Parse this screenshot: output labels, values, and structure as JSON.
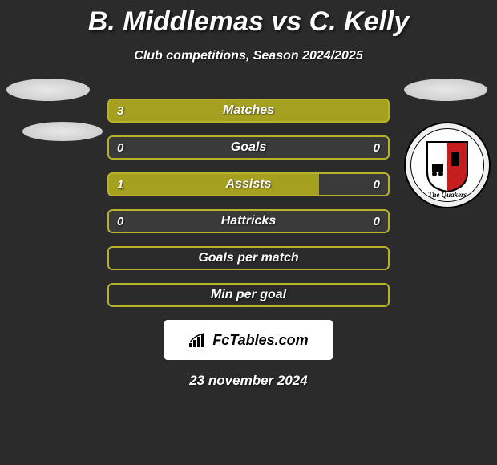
{
  "title": "B. Middlemas vs C. Kelly",
  "subtitle": "Club competitions, Season 2024/2025",
  "date": "23 november 2024",
  "footer": {
    "text": "FcTables.com"
  },
  "club_right": {
    "banner": "The Quakers"
  },
  "colors": {
    "bar_fill": "#a6a020",
    "bar_fill_alt": "#b6b030",
    "bar_border": "#b8b228",
    "bar_bg_empty": "#3a3a3a",
    "background": "#2b2b2b"
  },
  "bars": [
    {
      "label": "Matches",
      "left_value": "3",
      "right_value": "",
      "left_pct": 100,
      "right_pct": 0,
      "show_right_value": false
    },
    {
      "label": "Goals",
      "left_value": "0",
      "right_value": "0",
      "left_pct": 0,
      "right_pct": 0,
      "show_right_value": true
    },
    {
      "label": "Assists",
      "left_value": "1",
      "right_value": "0",
      "left_pct": 75,
      "right_pct": 0,
      "show_right_value": true
    },
    {
      "label": "Hattricks",
      "left_value": "0",
      "right_value": "0",
      "left_pct": 0,
      "right_pct": 0,
      "show_right_value": true
    },
    {
      "label": "Goals per match",
      "left_value": "",
      "right_value": "",
      "left_pct": 0,
      "right_pct": 0,
      "show_right_value": false,
      "full_border_only": true
    },
    {
      "label": "Min per goal",
      "left_value": "",
      "right_value": "",
      "left_pct": 0,
      "right_pct": 0,
      "show_right_value": false,
      "full_border_only": true
    }
  ]
}
